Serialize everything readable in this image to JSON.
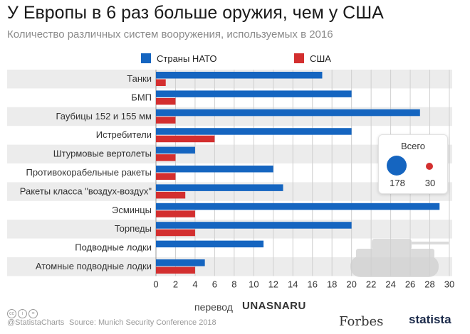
{
  "title": "У Европы в 6 раз больше оружия, чем у США",
  "subtitle": "Количество различных систем вооружения, используемых в 2016",
  "chart_data": {
    "type": "bar",
    "orientation": "horizontal",
    "categories": [
      "Танки",
      "БМП",
      "Гаубицы 152 и 155 мм",
      "Истребители",
      "Штурмовые вертолеты",
      "Противокорабельные ракеты",
      "Ракеты класса \"воздух-воздух\"",
      "Эсминцы",
      "Торпеды",
      "Подводные лодки",
      "Атомные подводные лодки"
    ],
    "series": [
      {
        "name": "Страны НАТО",
        "color": "#1565c0",
        "values": [
          17,
          20,
          27,
          20,
          4,
          12,
          13,
          29,
          20,
          11,
          5
        ]
      },
      {
        "name": "США",
        "color": "#d32f2f",
        "values": [
          1,
          2,
          2,
          6,
          2,
          2,
          3,
          4,
          4,
          0,
          4
        ]
      }
    ],
    "xlim": [
      0,
      30
    ],
    "xticks": [
      0,
      2,
      4,
      6,
      8,
      10,
      12,
      14,
      16,
      18,
      20,
      22,
      24,
      26,
      28,
      30
    ],
    "grid": true,
    "legend_position": "top"
  },
  "totals": {
    "label": "Всего",
    "nato": "178",
    "usa": "30"
  },
  "footer": {
    "handle": "@StatistaCharts",
    "source": "Source: Munich Security Conference 2018",
    "translated": "перевод",
    "translator": "UNASNARU",
    "brand1": "Forbes",
    "brand2": "statista"
  }
}
